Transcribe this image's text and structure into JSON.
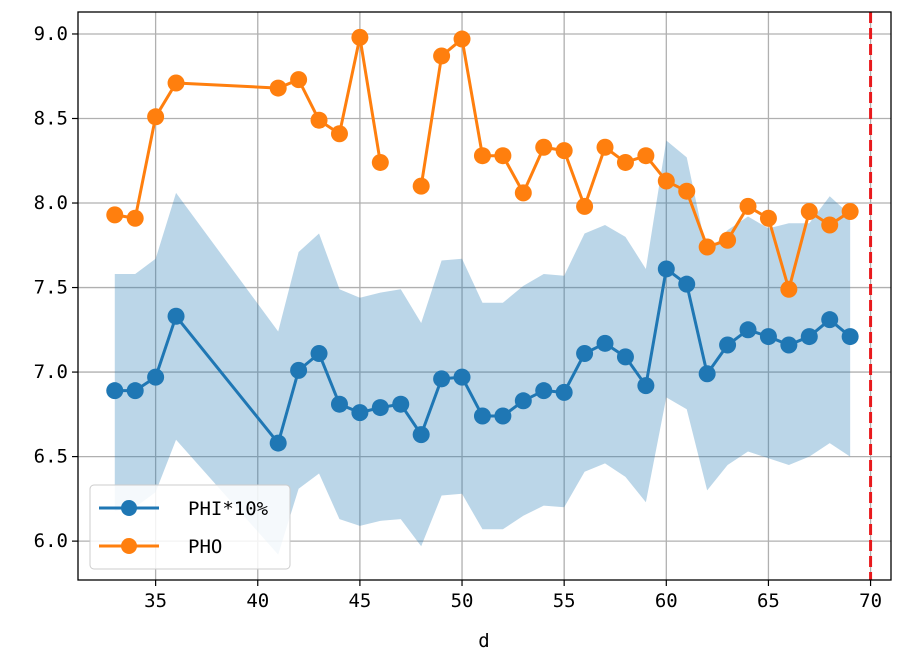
{
  "chart_data": {
    "type": "line",
    "title": "",
    "xlabel": "d",
    "ylabel": "",
    "xlim": [
      31.2,
      71.0
    ],
    "ylim": [
      5.77,
      9.13
    ],
    "xticks": [
      35,
      40,
      45,
      50,
      55,
      60,
      65,
      70
    ],
    "xtick_labels": [
      "35",
      "40",
      "45",
      "50",
      "55",
      "60",
      "65",
      "70"
    ],
    "yticks": [
      6.0,
      6.5,
      7.0,
      7.5,
      8.0,
      8.5,
      9.0
    ],
    "ytick_labels": [
      "6.0",
      "6.5",
      "7.0",
      "7.5",
      "8.0",
      "8.5",
      "9.0"
    ],
    "grid": true,
    "legend_position": "lower-left",
    "vline": {
      "x": 70,
      "color": "#e8191c",
      "style": "dashed"
    },
    "band": {
      "color": "#1f77b4",
      "alpha": 0.3,
      "x": [
        33,
        34,
        35,
        36,
        41,
        42,
        43,
        44,
        45,
        46,
        47,
        48,
        49,
        50,
        51,
        52,
        53,
        54,
        55,
        56,
        57,
        58,
        59,
        60,
        61,
        62,
        63,
        64,
        65,
        66,
        67,
        68,
        69
      ],
      "upper": [
        7.58,
        7.58,
        7.67,
        8.06,
        7.24,
        7.71,
        7.82,
        7.49,
        7.44,
        7.47,
        7.49,
        7.29,
        7.66,
        7.67,
        7.41,
        7.41,
        7.51,
        7.58,
        7.57,
        7.82,
        7.87,
        7.8,
        7.61,
        8.37,
        8.27,
        7.7,
        7.84,
        7.92,
        7.85,
        7.88,
        7.88,
        8.04,
        7.93
      ],
      "lower": [
        6.18,
        6.2,
        6.29,
        6.6,
        5.92,
        6.31,
        6.4,
        6.13,
        6.09,
        6.12,
        6.13,
        5.97,
        6.27,
        6.28,
        6.07,
        6.07,
        6.15,
        6.21,
        6.2,
        6.41,
        6.46,
        6.38,
        6.23,
        6.85,
        6.78,
        6.3,
        6.45,
        6.53,
        6.49,
        6.45,
        6.5,
        6.58,
        6.5
      ]
    },
    "series": [
      {
        "name": "PHI*10%",
        "color": "#1f77b4",
        "marker": "circle",
        "x": [
          33,
          34,
          35,
          36,
          41,
          42,
          43,
          44,
          45,
          46,
          47,
          48,
          49,
          50,
          51,
          52,
          53,
          54,
          55,
          56,
          57,
          58,
          59,
          60,
          61,
          62,
          63,
          64,
          65,
          66,
          67,
          68,
          69
        ],
        "y": [
          6.89,
          6.89,
          6.97,
          7.33,
          6.58,
          7.01,
          7.11,
          6.81,
          6.76,
          6.79,
          6.81,
          6.63,
          6.96,
          6.97,
          6.74,
          6.74,
          6.83,
          6.89,
          6.88,
          7.11,
          7.17,
          7.09,
          6.92,
          7.61,
          7.52,
          6.99,
          7.16,
          7.25,
          7.21,
          7.16,
          7.21,
          7.31,
          7.21
        ]
      },
      {
        "name": "PHO",
        "color": "#ff7f0e",
        "marker": "circle",
        "x": [
          33,
          34,
          35,
          36,
          41,
          42,
          43,
          44,
          45,
          46,
          null,
          48,
          49,
          50,
          51,
          52,
          53,
          54,
          55,
          56,
          57,
          58,
          59,
          60,
          61,
          62,
          63,
          64,
          65,
          66,
          67,
          68,
          69
        ],
        "y": [
          7.93,
          7.91,
          8.51,
          8.71,
          8.68,
          8.73,
          8.49,
          8.41,
          8.98,
          8.24,
          null,
          8.1,
          8.87,
          8.97,
          8.28,
          8.28,
          8.06,
          8.33,
          8.31,
          7.98,
          8.33,
          8.24,
          8.28,
          8.13,
          8.07,
          7.74,
          7.78,
          7.98,
          7.91,
          7.49,
          7.95,
          7.87,
          7.95
        ]
      }
    ]
  }
}
